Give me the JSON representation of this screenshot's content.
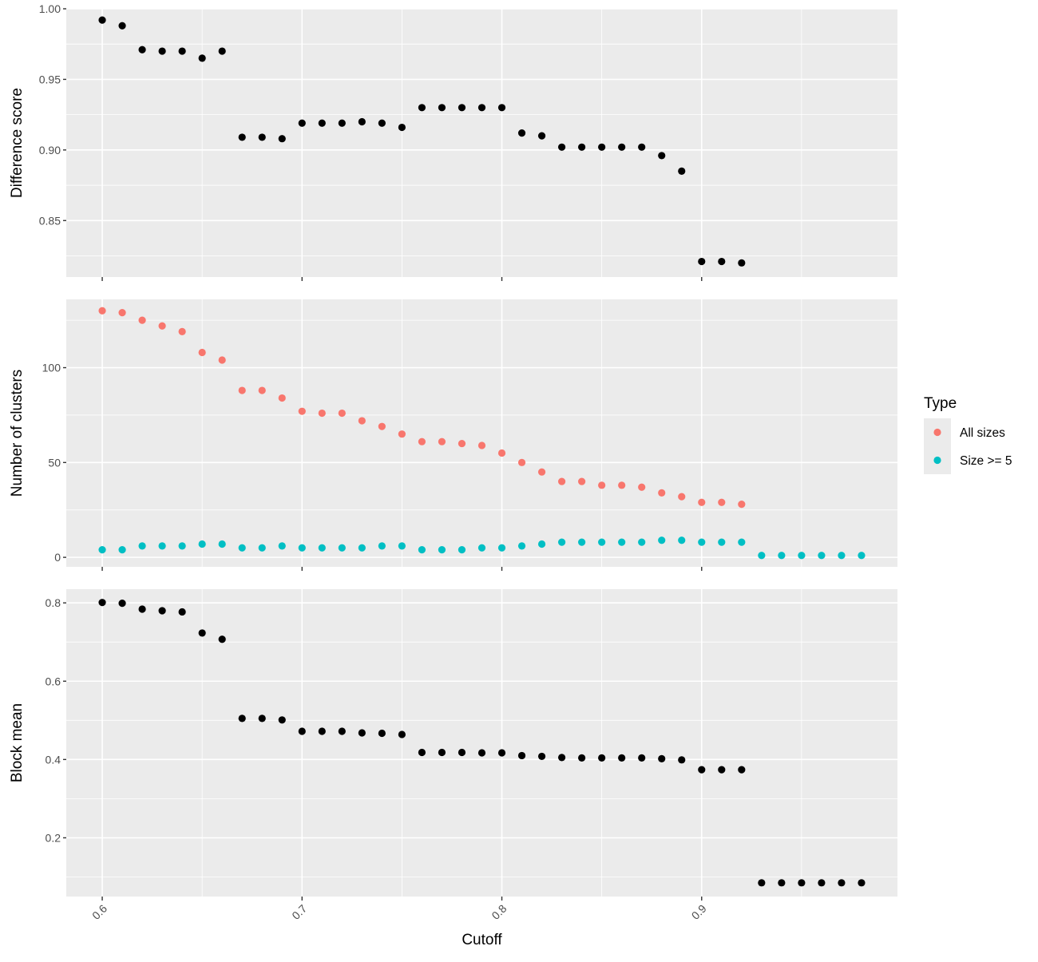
{
  "chart_data": [
    {
      "type": "scatter",
      "panel": "top",
      "ylabel": "Difference score",
      "ylim": [
        0.81,
        1.0
      ],
      "yticks": [
        0.85,
        0.9,
        0.95,
        1.0
      ],
      "ytick_labels": [
        "0.85",
        "0.90",
        "0.95",
        "1.00"
      ],
      "xlim": [
        0.582,
        0.998
      ],
      "xticks": [
        0.6,
        0.7,
        0.8,
        0.9
      ],
      "grid": true,
      "series": [
        {
          "color": "#000000",
          "x": [
            0.6,
            0.61,
            0.62,
            0.63,
            0.64,
            0.65,
            0.66,
            0.67,
            0.68,
            0.69,
            0.7,
            0.71,
            0.72,
            0.73,
            0.74,
            0.75,
            0.76,
            0.77,
            0.78,
            0.79,
            0.8,
            0.81,
            0.82,
            0.83,
            0.84,
            0.85,
            0.86,
            0.87,
            0.88,
            0.89,
            0.9,
            0.91,
            0.92
          ],
          "y": [
            0.992,
            0.988,
            0.971,
            0.97,
            0.97,
            0.965,
            0.97,
            0.909,
            0.909,
            0.908,
            0.919,
            0.919,
            0.919,
            0.92,
            0.919,
            0.916,
            0.93,
            0.93,
            0.93,
            0.93,
            0.93,
            0.912,
            0.91,
            0.902,
            0.902,
            0.902,
            0.902,
            0.902,
            0.896,
            0.885,
            0.821,
            0.821,
            0.82
          ]
        }
      ]
    },
    {
      "type": "scatter",
      "panel": "middle",
      "ylabel": "Number of clusters",
      "ylim": [
        -5,
        136
      ],
      "yticks": [
        0,
        50,
        100
      ],
      "ytick_labels": [
        "0",
        "50",
        "100"
      ],
      "xlim": [
        0.582,
        0.998
      ],
      "xticks": [
        0.6,
        0.7,
        0.8,
        0.9
      ],
      "grid": true,
      "legend_title": "Type",
      "legend_position": "right",
      "series": [
        {
          "name": "All sizes",
          "color": "#F8766D",
          "x": [
            0.6,
            0.61,
            0.62,
            0.63,
            0.64,
            0.65,
            0.66,
            0.67,
            0.68,
            0.69,
            0.7,
            0.71,
            0.72,
            0.73,
            0.74,
            0.75,
            0.76,
            0.77,
            0.78,
            0.79,
            0.8,
            0.81,
            0.82,
            0.83,
            0.84,
            0.85,
            0.86,
            0.87,
            0.88,
            0.89,
            0.9,
            0.91,
            0.92
          ],
          "y": [
            130,
            129,
            125,
            122,
            119,
            108,
            104,
            88,
            88,
            84,
            77,
            76,
            76,
            72,
            69,
            65,
            61,
            61,
            60,
            59,
            55,
            50,
            45,
            40,
            40,
            38,
            38,
            37,
            34,
            32,
            29,
            29,
            28
          ]
        },
        {
          "name": "Size >= 5",
          "color": "#00BFC4",
          "x": [
            0.6,
            0.61,
            0.62,
            0.63,
            0.64,
            0.65,
            0.66,
            0.67,
            0.68,
            0.69,
            0.7,
            0.71,
            0.72,
            0.73,
            0.74,
            0.75,
            0.76,
            0.77,
            0.78,
            0.79,
            0.8,
            0.81,
            0.82,
            0.83,
            0.84,
            0.85,
            0.86,
            0.87,
            0.88,
            0.89,
            0.9,
            0.91,
            0.92,
            0.93,
            0.94,
            0.95,
            0.96,
            0.97,
            0.98
          ],
          "y": [
            4,
            4,
            6,
            6,
            6,
            7,
            7,
            5,
            5,
            6,
            5,
            5,
            5,
            5,
            6,
            6,
            4,
            4,
            4,
            5,
            5,
            6,
            7,
            8,
            8,
            8,
            8,
            8,
            9,
            9,
            8,
            8,
            8,
            1,
            1,
            1,
            1,
            1,
            1
          ]
        }
      ]
    },
    {
      "type": "scatter",
      "panel": "bottom",
      "xlabel": "Cutoff",
      "ylabel": "Block mean",
      "ylim": [
        0.05,
        0.835
      ],
      "yticks": [
        0.2,
        0.4,
        0.6,
        0.8
      ],
      "ytick_labels": [
        "0.2",
        "0.4",
        "0.6",
        "0.8"
      ],
      "xlim": [
        0.582,
        0.998
      ],
      "xticks": [
        0.6,
        0.7,
        0.8,
        0.9
      ],
      "xtick_labels": [
        "0.6",
        "0.7",
        "0.8",
        "0.9"
      ],
      "grid": true,
      "series": [
        {
          "color": "#000000",
          "x": [
            0.6,
            0.61,
            0.62,
            0.63,
            0.64,
            0.65,
            0.66,
            0.67,
            0.68,
            0.69,
            0.7,
            0.71,
            0.72,
            0.73,
            0.74,
            0.75,
            0.76,
            0.77,
            0.78,
            0.79,
            0.8,
            0.81,
            0.82,
            0.83,
            0.84,
            0.85,
            0.86,
            0.87,
            0.88,
            0.89,
            0.9,
            0.91,
            0.92,
            0.93,
            0.94,
            0.95,
            0.96,
            0.97,
            0.98
          ],
          "y": [
            0.801,
            0.799,
            0.784,
            0.78,
            0.777,
            0.723,
            0.707,
            0.505,
            0.505,
            0.501,
            0.472,
            0.472,
            0.472,
            0.468,
            0.467,
            0.464,
            0.418,
            0.418,
            0.418,
            0.417,
            0.417,
            0.41,
            0.408,
            0.405,
            0.404,
            0.404,
            0.404,
            0.404,
            0.402,
            0.399,
            0.374,
            0.374,
            0.374,
            0.085,
            0.085,
            0.085,
            0.085,
            0.085,
            0.085
          ]
        }
      ]
    }
  ]
}
